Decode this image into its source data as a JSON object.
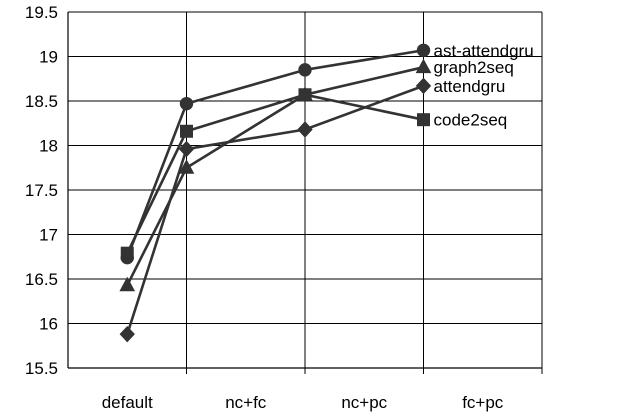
{
  "chart_data": {
    "type": "line",
    "categories": [
      "default",
      "nc+fc",
      "nc+pc",
      "fc+pc"
    ],
    "ylim": [
      15.5,
      19.5
    ],
    "yticks": [
      "15.5",
      "16",
      "16.5",
      "17",
      "17.5",
      "18",
      "18.5",
      "19",
      "19.5"
    ],
    "ytick_values": [
      15.5,
      16,
      16.5,
      17,
      17.5,
      18,
      18.5,
      19,
      19.5
    ],
    "grid": true,
    "series": [
      {
        "name": "ast-attendgru",
        "marker": "circle",
        "values": [
          16.74,
          18.47,
          18.85,
          19.07
        ]
      },
      {
        "name": "graph2seq",
        "marker": "triangle",
        "values": [
          16.43,
          17.75,
          18.57,
          18.88
        ]
      },
      {
        "name": "attendgru",
        "marker": "diamond",
        "values": [
          15.88,
          17.96,
          18.18,
          18.67
        ]
      },
      {
        "name": "code2seq",
        "marker": "square",
        "values": [
          16.79,
          18.16,
          18.57,
          18.29
        ]
      }
    ],
    "colors": {
      "series": "#333333",
      "grid": "#000000"
    }
  }
}
